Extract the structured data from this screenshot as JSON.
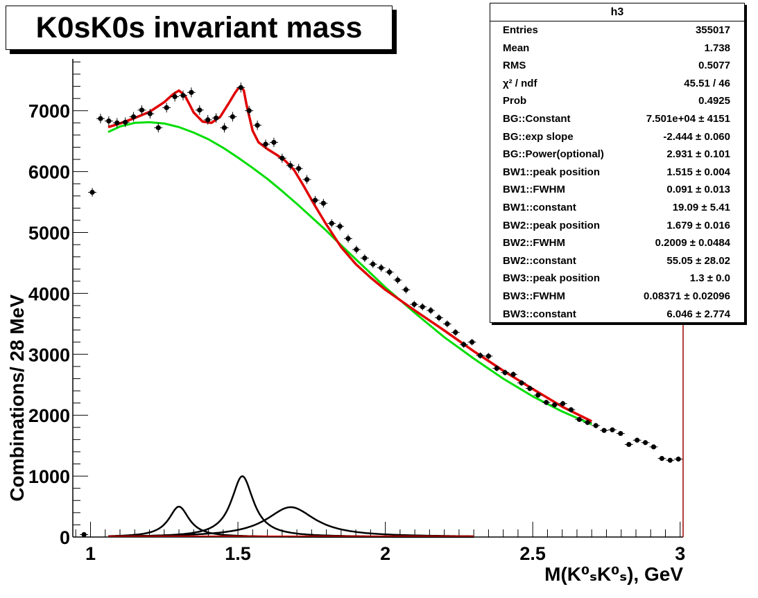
{
  "title": "K0sK0s invariant mass",
  "stats": {
    "name": "h3",
    "rows": [
      {
        "label": "Entries",
        "value": "355017"
      },
      {
        "label": "Mean",
        "value": "1.738"
      },
      {
        "label": "RMS",
        "value": "0.5077"
      },
      {
        "label": "χ² / ndf",
        "value": "45.51 / 46"
      },
      {
        "label": "Prob",
        "value": "0.4925"
      },
      {
        "label": "BG::Constant",
        "value": "7.501e+04 ± 4151"
      },
      {
        "label": "BG::exp slope",
        "value": "-2.444 ± 0.060"
      },
      {
        "label": "BG::Power(optional)",
        "value": "2.931 ± 0.101"
      },
      {
        "label": "BW1::peak position",
        "value": "1.515 ± 0.004"
      },
      {
        "label": "BW1::FWHM",
        "value": "0.091 ± 0.013"
      },
      {
        "label": "BW1::constant",
        "value": "19.09 ± 5.41"
      },
      {
        "label": "BW2::peak position",
        "value": "1.679 ± 0.016"
      },
      {
        "label": "BW2::FWHM",
        "value": "0.2009 ± 0.0484"
      },
      {
        "label": "BW2::constant",
        "value": "55.05 ± 28.02"
      },
      {
        "label": "BW3::peak position",
        "value": "1.3 ± 0.0"
      },
      {
        "label": "BW3::FWHM",
        "value": "0.08371 ± 0.02096"
      },
      {
        "label": "BW3::constant",
        "value": "6.046 ± 2.774"
      }
    ]
  },
  "colors": {
    "data": "#000000",
    "total_fit": "#e00000",
    "background_fit": "#00dd00",
    "components": "#000000",
    "right_axis": "#990000"
  },
  "chart_data": {
    "type": "scatter",
    "xlabel": "M(K⁰ₛK⁰ₛ), GeV",
    "ylabel": "Combinations/ 28 MeV",
    "xlim": [
      0.94,
      3.01
    ],
    "ylim": [
      0,
      7850
    ],
    "x_ticks": [
      1,
      1.5,
      2,
      2.5,
      3
    ],
    "x_tick_labels": [
      "1",
      "1.5",
      "2",
      "2.5",
      "3"
    ],
    "y_ticks": [
      0,
      1000,
      2000,
      3000,
      4000,
      5000,
      6000,
      7000
    ],
    "y_tick_labels": [
      "0",
      "1000",
      "2000",
      "3000",
      "4000",
      "5000",
      "6000",
      "7000"
    ],
    "bin_width": 0.028,
    "points": {
      "x": [
        0.978,
        1.006,
        1.034,
        1.062,
        1.09,
        1.118,
        1.146,
        1.174,
        1.202,
        1.23,
        1.258,
        1.286,
        1.314,
        1.342,
        1.37,
        1.398,
        1.426,
        1.454,
        1.482,
        1.51,
        1.538,
        1.566,
        1.594,
        1.622,
        1.65,
        1.678,
        1.706,
        1.734,
        1.762,
        1.79,
        1.818,
        1.846,
        1.874,
        1.902,
        1.93,
        1.958,
        1.986,
        2.014,
        2.042,
        2.07,
        2.098,
        2.126,
        2.154,
        2.182,
        2.21,
        2.238,
        2.266,
        2.294,
        2.322,
        2.35,
        2.378,
        2.406,
        2.434,
        2.462,
        2.49,
        2.518,
        2.546,
        2.574,
        2.602,
        2.63,
        2.658,
        2.686,
        2.714,
        2.742,
        2.77,
        2.798,
        2.826,
        2.854,
        2.882,
        2.91,
        2.938,
        2.966,
        2.994
      ],
      "y": [
        40,
        5660,
        6870,
        6830,
        6800,
        6810,
        6900,
        7010,
        6950,
        6720,
        7050,
        7230,
        7250,
        7300,
        7010,
        6850,
        6880,
        6720,
        6900,
        7380,
        7000,
        6760,
        6450,
        6480,
        6220,
        6100,
        6050,
        5870,
        5530,
        5480,
        5150,
        5100,
        4900,
        4720,
        4580,
        4480,
        4420,
        4350,
        4220,
        4060,
        3820,
        3780,
        3720,
        3600,
        3500,
        3360,
        3160,
        3200,
        2980,
        2970,
        2770,
        2700,
        2670,
        2530,
        2440,
        2330,
        2210,
        2170,
        2190,
        2090,
        1930,
        1880,
        1830,
        1750,
        1760,
        1700,
        1520,
        1590,
        1550,
        1480,
        1290,
        1260,
        1280
      ]
    },
    "fit_range": [
      1.06,
      2.7
    ],
    "total_fit_points": {
      "x": [
        1.06,
        1.1,
        1.15,
        1.2,
        1.25,
        1.28,
        1.3,
        1.32,
        1.35,
        1.38,
        1.41,
        1.44,
        1.47,
        1.49,
        1.5,
        1.51,
        1.52,
        1.53,
        1.55,
        1.57,
        1.6,
        1.63,
        1.66,
        1.69,
        1.72,
        1.76,
        1.8,
        1.85,
        1.9,
        1.95,
        2.0,
        2.1,
        2.2,
        2.3,
        2.4,
        2.5,
        2.6,
        2.7
      ],
      "y": [
        6730,
        6790,
        6880,
        6980,
        7140,
        7270,
        7330,
        7250,
        6970,
        6820,
        6800,
        6900,
        7130,
        7290,
        7360,
        7400,
        7330,
        7080,
        6670,
        6480,
        6370,
        6280,
        6180,
        6030,
        5790,
        5450,
        5130,
        4760,
        4480,
        4260,
        4060,
        3720,
        3390,
        3050,
        2730,
        2430,
        2140,
        1900
      ]
    },
    "background_fit_points": {
      "x": [
        1.06,
        1.1,
        1.15,
        1.2,
        1.25,
        1.3,
        1.35,
        1.4,
        1.45,
        1.5,
        1.55,
        1.6,
        1.65,
        1.7,
        1.75,
        1.8,
        1.85,
        1.9,
        1.95,
        2.0,
        2.1,
        2.2,
        2.3,
        2.4,
        2.5,
        2.6,
        2.7
      ],
      "y": [
        6650,
        6740,
        6800,
        6810,
        6790,
        6730,
        6640,
        6530,
        6390,
        6230,
        6060,
        5880,
        5680,
        5470,
        5250,
        5030,
        4790,
        4560,
        4330,
        4100,
        3680,
        3280,
        2930,
        2600,
        2310,
        2060,
        1850
      ]
    },
    "components": [
      {
        "peak": 1.3,
        "fwhm": 0.084,
        "height": 500
      },
      {
        "peak": 1.515,
        "fwhm": 0.091,
        "height": 1000
      },
      {
        "peak": 1.679,
        "fwhm": 0.201,
        "height": 490
      }
    ],
    "component_range": [
      1.06,
      2.3
    ]
  }
}
